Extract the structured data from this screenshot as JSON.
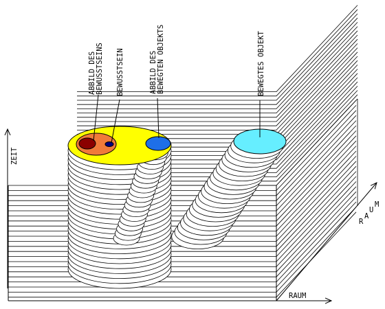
{
  "labels": {
    "abbild_bewusstseins": [
      "ABBILD DES",
      "BEWUSSTSEINS"
    ],
    "bewusstsein": "BEWUSSTSEIN",
    "abbild_objekts": [
      "ABBILD DES",
      "BEWEGTEN OBJEKTS"
    ],
    "bewegtes_objekt": "BEWEGTES OBJEKT"
  },
  "axes": {
    "zeit": "ZEIT",
    "raum_x": "RAUM",
    "raum_diag": [
      "R",
      "A",
      "U",
      "M"
    ]
  },
  "colors": {
    "consciousness_disc": "#ffff00",
    "self_region": "#f07a3a",
    "self_image": "#8b0000",
    "small_mark": "#000080",
    "object_image": "#1e6fe8",
    "moving_object": "#66eeff",
    "line": "#000000"
  }
}
